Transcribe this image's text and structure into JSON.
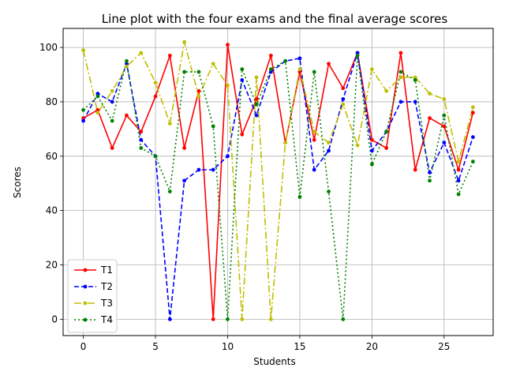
{
  "chart_data": {
    "type": "line",
    "title": "Line plot with the four exams and the final average scores",
    "xlabel": "Students",
    "ylabel": "Scores",
    "xlim": [
      -1.4,
      28.4
    ],
    "ylim": [
      -6,
      107
    ],
    "xticks": [
      0,
      5,
      10,
      15,
      20,
      25
    ],
    "yticks": [
      0,
      20,
      40,
      60,
      80,
      100
    ],
    "grid": true,
    "legend_position": "lower-left",
    "x": [
      0,
      1,
      2,
      3,
      4,
      5,
      6,
      7,
      8,
      9,
      10,
      11,
      12,
      13,
      14,
      15,
      16,
      17,
      18,
      19,
      20,
      21,
      22,
      23,
      24,
      25,
      26,
      27
    ],
    "series": [
      {
        "name": "T1",
        "color": "#ff0000",
        "linestyle": "solid",
        "values": [
          74,
          77,
          63,
          75,
          69,
          82,
          97,
          63,
          84,
          0,
          101,
          68,
          81,
          97,
          65,
          91,
          66,
          94,
          85,
          98,
          66,
          63,
          98,
          55,
          74,
          71,
          55,
          76
        ]
      },
      {
        "name": "T2",
        "color": "#0000ff",
        "linestyle": "dashed",
        "values": [
          73,
          83,
          80,
          94,
          66,
          60,
          0,
          51,
          55,
          55,
          60,
          88,
          75,
          91,
          95,
          96,
          55,
          62,
          81,
          98,
          62,
          69,
          80,
          80,
          54,
          65,
          51,
          67
        ]
      },
      {
        "name": "T3",
        "color": "#bfbf00",
        "linestyle": "dashdot",
        "values": [
          99,
          76,
          84,
          93,
          98,
          87,
          72,
          102,
          82,
          94,
          86,
          0,
          89,
          0,
          65,
          92,
          69,
          65,
          79,
          64,
          92,
          84,
          89,
          89,
          83,
          81,
          58,
          78
        ]
      },
      {
        "name": "T4",
        "color": "#008000",
        "linestyle": "dotted",
        "values": [
          77,
          82,
          73,
          95,
          63,
          60,
          47,
          91,
          91,
          71,
          0,
          92,
          79,
          92,
          95,
          45,
          91,
          47,
          0,
          97,
          57,
          69,
          91,
          88,
          51,
          75,
          46,
          58
        ]
      }
    ]
  }
}
